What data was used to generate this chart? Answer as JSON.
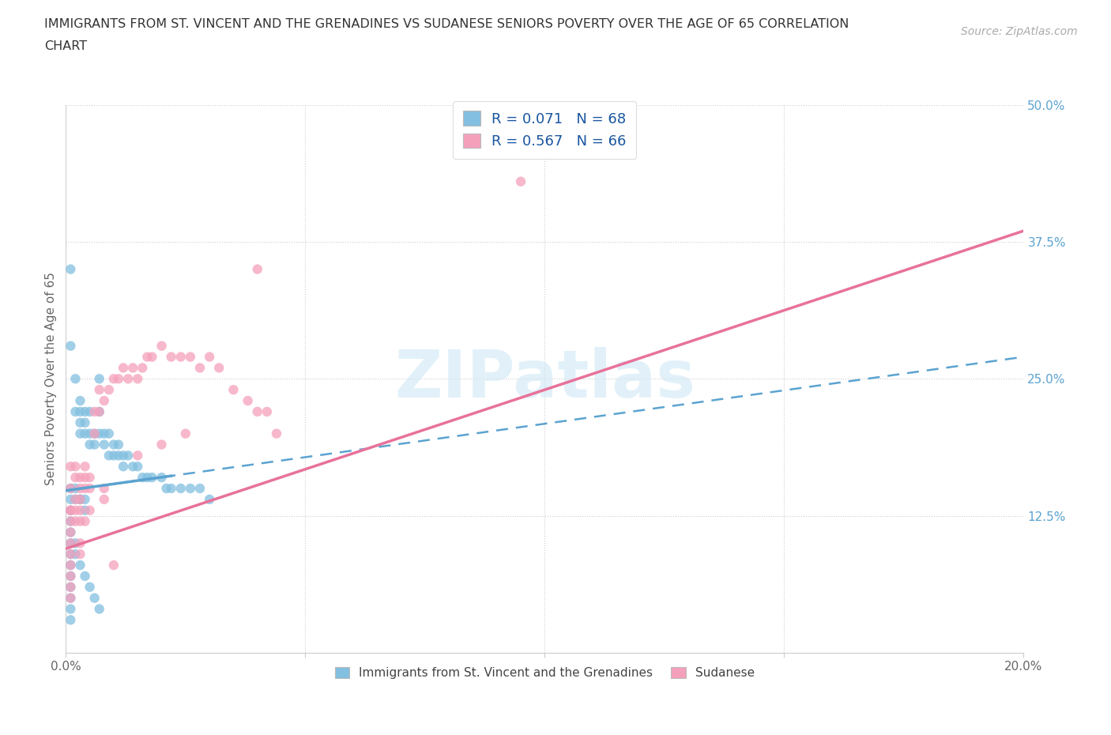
{
  "title_line1": "IMMIGRANTS FROM ST. VINCENT AND THE GRENADINES VS SUDANESE SENIORS POVERTY OVER THE AGE OF 65 CORRELATION",
  "title_line2": "CHART",
  "source": "Source: ZipAtlas.com",
  "ylabel": "Seniors Poverty Over the Age of 65",
  "xlim": [
    0.0,
    0.2
  ],
  "ylim": [
    0.0,
    0.5
  ],
  "xticks": [
    0.0,
    0.05,
    0.1,
    0.15,
    0.2
  ],
  "yticks": [
    0.0,
    0.125,
    0.25,
    0.375,
    0.5
  ],
  "blue_color": "#82bfe0",
  "pink_color": "#f5a0bb",
  "blue_line_color": "#5ba3d0",
  "pink_line_color": "#e8729a",
  "blue_R": 0.071,
  "blue_N": 68,
  "pink_R": 0.567,
  "pink_N": 66,
  "legend1_label": "Immigrants from St. Vincent and the Grenadines",
  "legend2_label": "Sudanese",
  "watermark": "ZIPatlas",
  "blue_trend": [
    0.0,
    0.2,
    0.148,
    0.27
  ],
  "pink_trend": [
    0.0,
    0.2,
    0.095,
    0.385
  ],
  "blue_scatter_x": [
    0.001,
    0.001,
    0.002,
    0.002,
    0.003,
    0.003,
    0.003,
    0.003,
    0.004,
    0.004,
    0.004,
    0.005,
    0.005,
    0.005,
    0.006,
    0.006,
    0.007,
    0.007,
    0.007,
    0.008,
    0.008,
    0.009,
    0.009,
    0.01,
    0.01,
    0.011,
    0.011,
    0.012,
    0.012,
    0.013,
    0.014,
    0.015,
    0.016,
    0.017,
    0.018,
    0.02,
    0.021,
    0.022,
    0.024,
    0.026,
    0.028,
    0.03,
    0.001,
    0.001,
    0.002,
    0.002,
    0.003,
    0.003,
    0.004,
    0.004,
    0.001,
    0.001,
    0.001,
    0.001,
    0.001,
    0.001,
    0.001,
    0.001,
    0.001,
    0.001,
    0.001,
    0.002,
    0.002,
    0.003,
    0.004,
    0.005,
    0.006,
    0.007
  ],
  "blue_scatter_y": [
    0.35,
    0.28,
    0.25,
    0.22,
    0.23,
    0.22,
    0.21,
    0.2,
    0.22,
    0.21,
    0.2,
    0.22,
    0.2,
    0.19,
    0.2,
    0.19,
    0.25,
    0.22,
    0.2,
    0.2,
    0.19,
    0.2,
    0.18,
    0.19,
    0.18,
    0.19,
    0.18,
    0.18,
    0.17,
    0.18,
    0.17,
    0.17,
    0.16,
    0.16,
    0.16,
    0.16,
    0.15,
    0.15,
    0.15,
    0.15,
    0.15,
    0.14,
    0.15,
    0.14,
    0.15,
    0.14,
    0.14,
    0.14,
    0.14,
    0.13,
    0.13,
    0.12,
    0.11,
    0.1,
    0.09,
    0.08,
    0.07,
    0.06,
    0.05,
    0.04,
    0.03,
    0.1,
    0.09,
    0.08,
    0.07,
    0.06,
    0.05,
    0.04
  ],
  "pink_scatter_x": [
    0.001,
    0.001,
    0.001,
    0.002,
    0.002,
    0.002,
    0.003,
    0.003,
    0.003,
    0.004,
    0.004,
    0.004,
    0.005,
    0.005,
    0.006,
    0.006,
    0.007,
    0.007,
    0.008,
    0.009,
    0.01,
    0.011,
    0.012,
    0.013,
    0.014,
    0.015,
    0.016,
    0.017,
    0.018,
    0.02,
    0.022,
    0.024,
    0.026,
    0.028,
    0.03,
    0.032,
    0.035,
    0.038,
    0.04,
    0.042,
    0.044,
    0.001,
    0.001,
    0.002,
    0.002,
    0.003,
    0.003,
    0.004,
    0.001,
    0.001,
    0.001,
    0.001,
    0.001,
    0.001,
    0.001,
    0.095,
    0.04,
    0.01,
    0.025,
    0.008,
    0.008,
    0.015,
    0.02,
    0.005,
    0.003,
    0.003
  ],
  "pink_scatter_y": [
    0.17,
    0.15,
    0.13,
    0.17,
    0.16,
    0.14,
    0.16,
    0.15,
    0.14,
    0.17,
    0.16,
    0.15,
    0.16,
    0.15,
    0.22,
    0.2,
    0.24,
    0.22,
    0.23,
    0.24,
    0.25,
    0.25,
    0.26,
    0.25,
    0.26,
    0.25,
    0.26,
    0.27,
    0.27,
    0.28,
    0.27,
    0.27,
    0.27,
    0.26,
    0.27,
    0.26,
    0.24,
    0.23,
    0.22,
    0.22,
    0.2,
    0.13,
    0.12,
    0.13,
    0.12,
    0.13,
    0.12,
    0.12,
    0.11,
    0.1,
    0.09,
    0.08,
    0.07,
    0.06,
    0.05,
    0.43,
    0.35,
    0.08,
    0.2,
    0.15,
    0.14,
    0.18,
    0.19,
    0.13,
    0.1,
    0.09
  ]
}
